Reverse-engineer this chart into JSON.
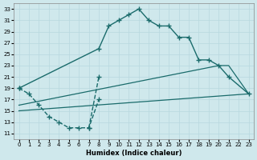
{
  "xlabel": "Humidex (Indice chaleur)",
  "xlim": [
    -0.5,
    23.5
  ],
  "ylim": [
    10,
    34
  ],
  "yticks": [
    11,
    13,
    15,
    17,
    19,
    21,
    23,
    25,
    27,
    29,
    31,
    33
  ],
  "xticks": [
    0,
    1,
    2,
    3,
    4,
    5,
    6,
    7,
    8,
    9,
    10,
    11,
    12,
    13,
    14,
    15,
    16,
    17,
    18,
    19,
    20,
    21,
    22,
    23
  ],
  "bg_color": "#cfe8ec",
  "grid_color": "#b8d8de",
  "line_color": "#1a6b6b",
  "line1": {
    "x": [
      0,
      1,
      2,
      3,
      4,
      5,
      6,
      7,
      8,
      9,
      10,
      11,
      12,
      13,
      14,
      15,
      16,
      17,
      18,
      19,
      20,
      21,
      22,
      23
    ],
    "y": [
      19,
      null,
      null,
      null,
      null,
      null,
      null,
      null,
      26,
      30,
      31,
      32,
      33,
      31,
      30,
      30,
      28,
      28,
      24,
      24,
      23,
      21,
      null,
      18
    ]
  },
  "line2": {
    "x": [
      0,
      1,
      2,
      3,
      4,
      5,
      6,
      7,
      8
    ],
    "y": [
      19,
      18,
      16,
      14,
      13,
      12,
      12,
      12,
      17
    ]
  },
  "spike": {
    "x": [
      7,
      8
    ],
    "y": [
      12,
      21
    ]
  },
  "avg_low": {
    "x": [
      0,
      23
    ],
    "y": [
      15,
      18
    ]
  },
  "avg_mid": {
    "x": [
      0,
      20,
      21,
      23
    ],
    "y": [
      16,
      23,
      23,
      18
    ]
  }
}
